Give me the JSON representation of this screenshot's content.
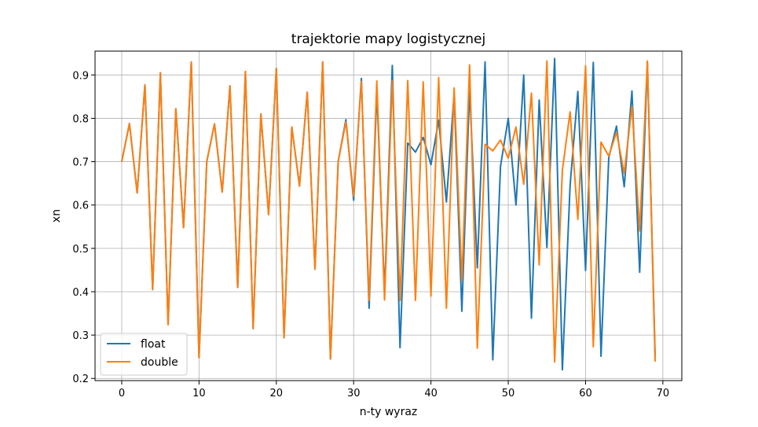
{
  "chart_data": {
    "type": "line",
    "title": "trajektorie mapy logistycznej",
    "xlabel": "n-ty wyraz",
    "ylabel": "xn",
    "xlim": [
      -3.45,
      72.45
    ],
    "ylim": [
      0.195,
      0.955
    ],
    "xticks": [
      0,
      10,
      20,
      30,
      40,
      50,
      60,
      70
    ],
    "yticks": [
      0.2,
      0.3,
      0.4,
      0.5,
      0.6,
      0.7,
      0.8,
      0.9
    ],
    "grid": true,
    "legend": "lower-left",
    "series": [
      {
        "name": "float",
        "color": "#1f77b4",
        "values": [
          0.7,
          0.788,
          0.628,
          0.877,
          0.405,
          0.905,
          0.324,
          0.822,
          0.548,
          0.93,
          0.248,
          0.7,
          0.787,
          0.63,
          0.875,
          0.41,
          0.908,
          0.315,
          0.81,
          0.578,
          0.915,
          0.294,
          0.78,
          0.644,
          0.86,
          0.452,
          0.93,
          0.245,
          0.7,
          0.797,
          0.611,
          0.892,
          0.362,
          0.864,
          0.397,
          0.922,
          0.271,
          0.743,
          0.722,
          0.756,
          0.693,
          0.796,
          0.607,
          0.857,
          0.355,
          0.868,
          0.455,
          0.93,
          0.243,
          0.69,
          0.8,
          0.6,
          0.9,
          0.339,
          0.842,
          0.502,
          0.938,
          0.22,
          0.645,
          0.862,
          0.449,
          0.929,
          0.251,
          0.709,
          0.782,
          0.642,
          0.863,
          0.445,
          0.929,
          0.25
        ]
      },
      {
        "name": "double",
        "color": "#ff7f0e",
        "values": [
          0.7,
          0.788,
          0.628,
          0.877,
          0.405,
          0.905,
          0.324,
          0.822,
          0.548,
          0.93,
          0.248,
          0.7,
          0.787,
          0.63,
          0.875,
          0.41,
          0.908,
          0.315,
          0.81,
          0.578,
          0.915,
          0.294,
          0.78,
          0.644,
          0.86,
          0.452,
          0.93,
          0.245,
          0.7,
          0.792,
          0.62,
          0.885,
          0.38,
          0.886,
          0.381,
          0.887,
          0.38,
          0.887,
          0.38,
          0.884,
          0.39,
          0.894,
          0.362,
          0.87,
          0.426,
          0.923,
          0.27,
          0.74,
          0.725,
          0.75,
          0.708,
          0.78,
          0.648,
          0.858,
          0.462,
          0.932,
          0.238,
          0.68,
          0.815,
          0.567,
          0.921,
          0.273,
          0.745,
          0.713,
          0.768,
          0.673,
          0.828,
          0.54,
          0.932,
          0.239
        ]
      }
    ]
  }
}
